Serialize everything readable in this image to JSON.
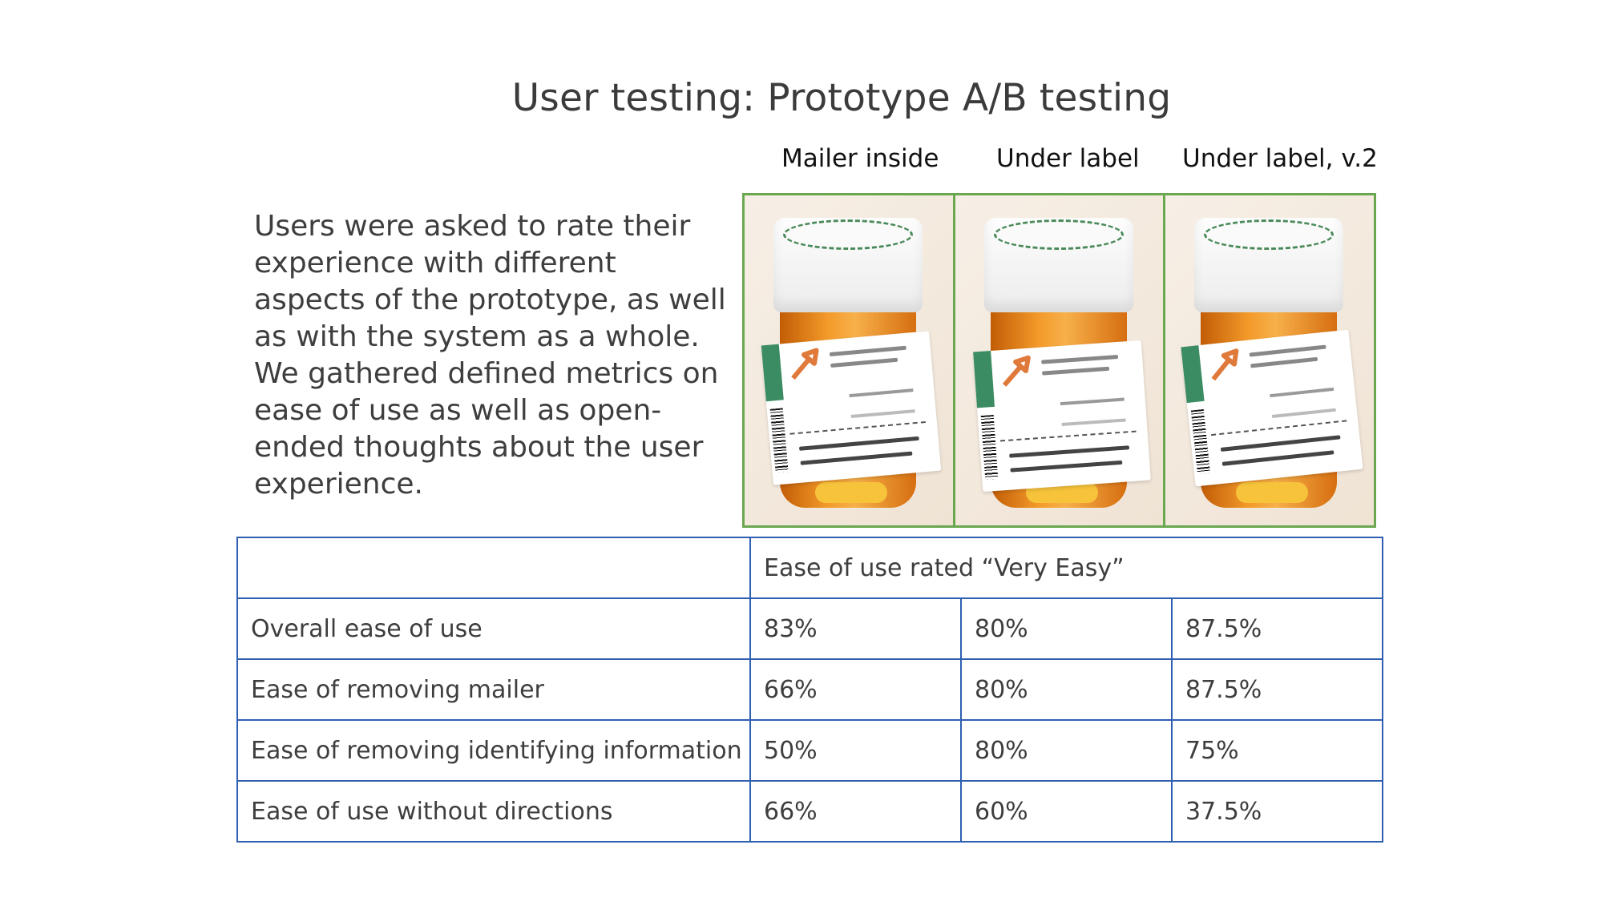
{
  "slide": {
    "title": "User testing: Prototype A/B testing",
    "description_lines": [
      "Users were asked to rate their experience with different aspects of the prototype, as well as with the system as a whole.",
      "We gathered defined metrics on ease of use as well as open-ended thoughts about the user experience."
    ]
  },
  "prototypes": [
    {
      "label": "Mailer inside"
    },
    {
      "label": "Under label"
    },
    {
      "label": "Under label, v.2"
    }
  ],
  "photo_frame_color": "#6aa84f",
  "table_border_color": "#2f5fb0",
  "table": {
    "header_corner": "",
    "header_span": "Ease of use rated “Very Easy”",
    "rows": [
      {
        "label": "Overall ease of use",
        "values": [
          "83%",
          "80%",
          "87.5%"
        ]
      },
      {
        "label": "Ease of removing mailer",
        "values": [
          "66%",
          "80%",
          "87.5%"
        ]
      },
      {
        "label": "Ease of removing identifying information",
        "values": [
          "50%",
          "80%",
          "75%"
        ]
      },
      {
        "label": "Ease of use without directions",
        "values": [
          "66%",
          "60%",
          "37.5%"
        ]
      }
    ]
  }
}
